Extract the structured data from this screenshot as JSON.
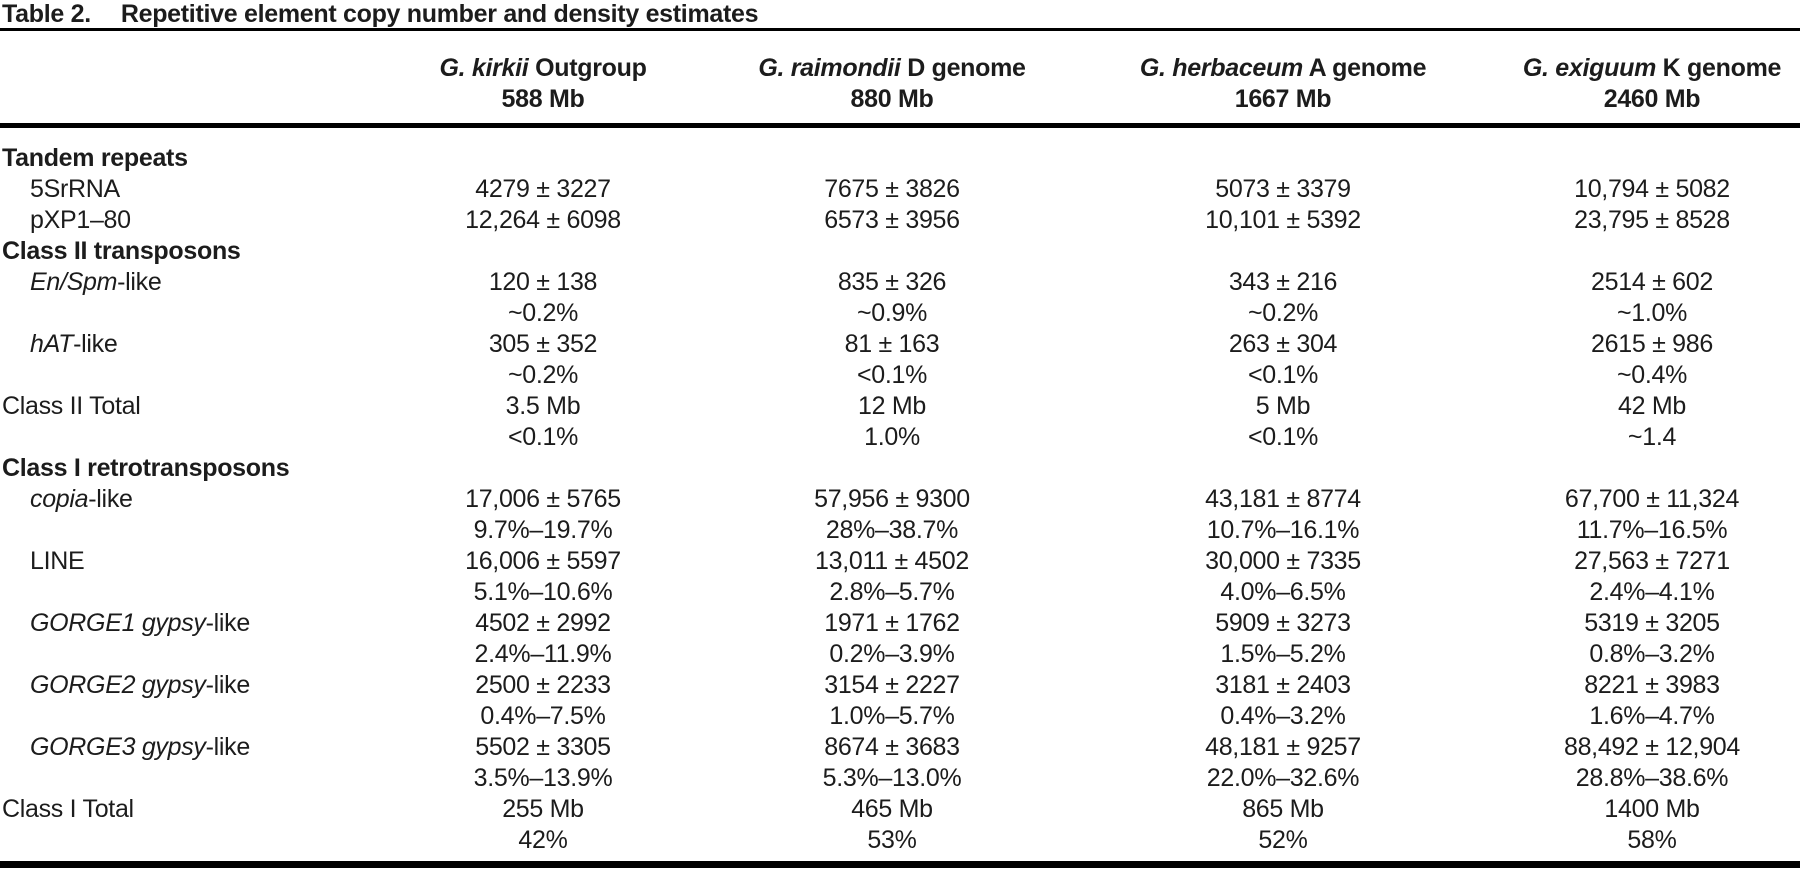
{
  "title": {
    "label": "Table 2.",
    "text": "Repetitive element copy number and density estimates"
  },
  "header": {
    "columns": [
      {
        "species": "G. kirkii",
        "descriptor": " Outgroup",
        "size": "588 Mb"
      },
      {
        "species": "G. raimondii",
        "descriptor": " D genome",
        "size": "880 Mb"
      },
      {
        "species": "G. herbaceum",
        "descriptor": " A genome",
        "size": "1667 Mb"
      },
      {
        "species": "G. exiguum",
        "descriptor": " K genome",
        "size": "2460 Mb"
      }
    ]
  },
  "rows": [
    {
      "kind": "section",
      "label": [
        {
          "t": "Tandem repeats"
        }
      ]
    },
    {
      "kind": "item",
      "label": [
        {
          "t": "5SrRNA"
        }
      ],
      "values": [
        "4279 ± 3227",
        "7675 ± 3826",
        "5073 ± 3379",
        "10,794 ± 5082"
      ]
    },
    {
      "kind": "item",
      "label": [
        {
          "t": "pXP1–80"
        }
      ],
      "values": [
        "12,264 ± 6098",
        "6573 ± 3956",
        "10,101 ± 5392",
        "23,795 ± 8528"
      ]
    },
    {
      "kind": "section",
      "label": [
        {
          "t": "Class II transposons"
        }
      ]
    },
    {
      "kind": "item",
      "label": [
        {
          "t": "En/Spm",
          "i": true
        },
        {
          "t": "-like"
        }
      ],
      "values": [
        "120 ± 138",
        "835 ± 326",
        "343 ± 216",
        "2514 ± 602"
      ],
      "sub": [
        "~0.2%",
        "~0.9%",
        "~0.2%",
        "~1.0%"
      ]
    },
    {
      "kind": "item",
      "label": [
        {
          "t": "hAT",
          "i": true
        },
        {
          "t": "-like"
        }
      ],
      "values": [
        "305 ± 352",
        "81 ± 163",
        "263 ± 304",
        "2615 ± 986"
      ],
      "sub": [
        "~0.2%",
        "<0.1%",
        "<0.1%",
        "~0.4%"
      ]
    },
    {
      "kind": "total",
      "label": [
        {
          "t": "Class II Total"
        }
      ],
      "values": [
        "3.5 Mb",
        "12 Mb",
        "5 Mb",
        "42 Mb"
      ],
      "sub": [
        "<0.1%",
        "1.0%",
        "<0.1%",
        "~1.4"
      ]
    },
    {
      "kind": "section",
      "label": [
        {
          "t": "Class I retrotransposons"
        }
      ]
    },
    {
      "kind": "item",
      "label": [
        {
          "t": "copia",
          "i": true
        },
        {
          "t": "-like"
        }
      ],
      "values": [
        "17,006 ± 5765",
        "57,956 ± 9300",
        "43,181 ± 8774",
        "67,700 ± 11,324"
      ],
      "sub": [
        "9.7%–19.7%",
        "28%–38.7%",
        "10.7%–16.1%",
        "11.7%–16.5%"
      ]
    },
    {
      "kind": "item",
      "label": [
        {
          "t": "LINE"
        }
      ],
      "values": [
        "16,006 ± 5597",
        "13,011 ± 4502",
        "30,000 ± 7335",
        "27,563 ± 7271"
      ],
      "sub": [
        "5.1%–10.6%",
        "2.8%–5.7%",
        "4.0%–6.5%",
        "2.4%–4.1%"
      ]
    },
    {
      "kind": "item",
      "label": [
        {
          "t": "GORGE1 gypsy",
          "i": true
        },
        {
          "t": "-like"
        }
      ],
      "values": [
        "4502 ± 2992",
        "1971 ± 1762",
        "5909 ± 3273",
        "5319 ± 3205"
      ],
      "sub": [
        "2.4%–11.9%",
        "0.2%–3.9%",
        "1.5%–5.2%",
        "0.8%–3.2%"
      ]
    },
    {
      "kind": "item",
      "label": [
        {
          "t": "GORGE2 gypsy",
          "i": true
        },
        {
          "t": "-like"
        }
      ],
      "values": [
        "2500 ± 2233",
        "3154 ± 2227",
        "3181 ± 2403",
        "8221 ± 3983"
      ],
      "sub": [
        "0.4%–7.5%",
        "1.0%–5.7%",
        "0.4%–3.2%",
        "1.6%–4.7%"
      ]
    },
    {
      "kind": "item",
      "label": [
        {
          "t": "GORGE3 gypsy",
          "i": true
        },
        {
          "t": "-like"
        }
      ],
      "values": [
        "5502 ± 3305",
        "8674 ± 3683",
        "48,181 ± 9257",
        "88,492 ± 12,904"
      ],
      "sub": [
        "3.5%–13.9%",
        "5.3%–13.0%",
        "22.0%–32.6%",
        "28.8%–38.6%"
      ]
    },
    {
      "kind": "total",
      "label": [
        {
          "t": "Class I Total"
        }
      ],
      "values": [
        "255 Mb",
        "465 Mb",
        "865 Mb",
        "1400 Mb"
      ],
      "sub": [
        "42%",
        "53%",
        "52%",
        "58%"
      ]
    }
  ],
  "colors": {
    "text": "#1c1c1c",
    "rule": "#000000",
    "background": "#ffffff"
  }
}
